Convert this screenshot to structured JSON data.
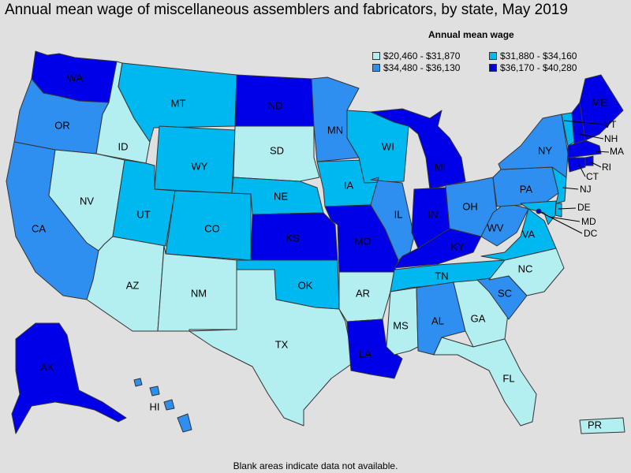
{
  "title": "Annual mean wage of miscellaneous assemblers and fabricators, by state, May 2019",
  "legend": {
    "title": "Annual mean wage",
    "bins": [
      {
        "label": "$20,460 - $31,870",
        "color": "#b3eef0"
      },
      {
        "label": "$31,880 - $34,160",
        "color": "#00b8f0"
      },
      {
        "label": "$34,480 - $36,130",
        "color": "#2f8ff0"
      },
      {
        "label": "$36,170 - $40,280",
        "color": "#0000e8"
      }
    ]
  },
  "footnote": "Blank areas indicate data not available.",
  "states": {
    "WA": 3,
    "OR": 2,
    "CA": 2,
    "ID": 0,
    "NV": 0,
    "AZ": 0,
    "MT": 1,
    "WY": 1,
    "UT": 1,
    "CO": 1,
    "NM": 0,
    "ND": 3,
    "SD": 0,
    "NE": 1,
    "KS": 3,
    "OK": 1,
    "TX": 0,
    "MN": 2,
    "IA": 1,
    "MO": 3,
    "AR": 0,
    "LA": 3,
    "WI": 1,
    "IL": 2,
    "MI": 3,
    "IN": 3,
    "OH": 2,
    "KY": 3,
    "TN": 1,
    "MS": 0,
    "AL": 2,
    "GA": 0,
    "FL": 0,
    "SC": 2,
    "NC": 0,
    "VA": 1,
    "WV": 2,
    "PA": 2,
    "NY": 2,
    "VT": 1,
    "NH": 3,
    "ME": 3,
    "MA": 3,
    "RI": 3,
    "CT": 3,
    "NJ": 1,
    "DE": 1,
    "MD": 1,
    "DC": 3,
    "AK": 3,
    "HI": 2,
    "PR": 0
  }
}
